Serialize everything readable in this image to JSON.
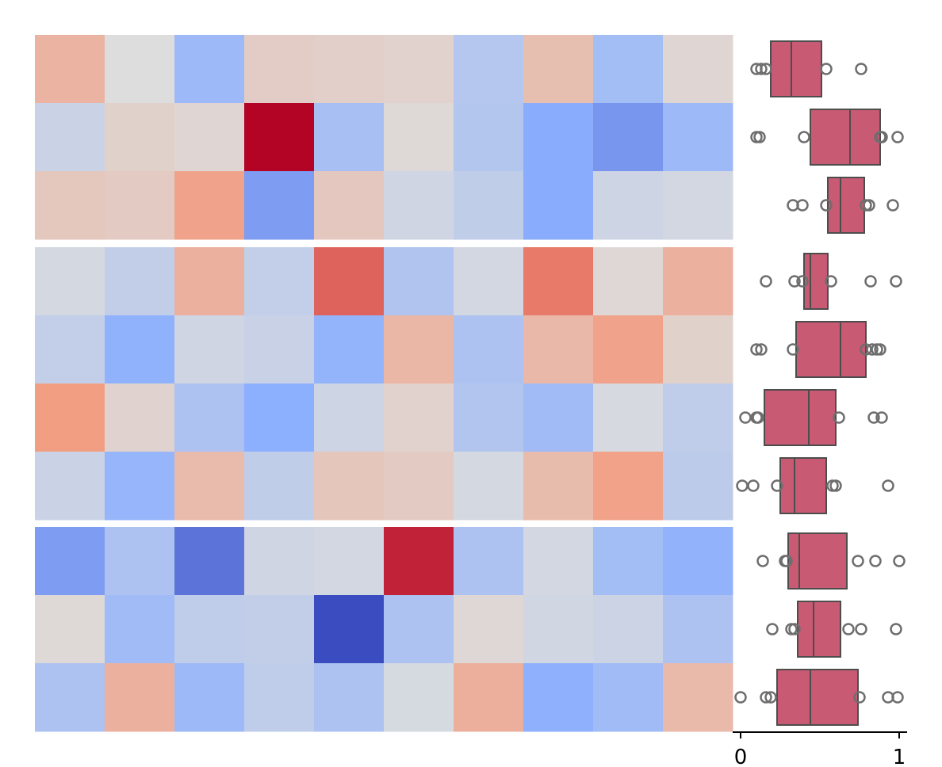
{
  "chart_data": [
    {
      "type": "heatmap",
      "title": "",
      "xlabel": "",
      "ylabel": "",
      "colormap": "coolwarm",
      "value_range": [
        -1,
        1
      ],
      "columns": 10,
      "row_groups": [
        3,
        4,
        3
      ],
      "values": [
        [
          0.3,
          0.0,
          -0.4,
          0.12,
          0.1,
          0.08,
          -0.25,
          0.22,
          -0.36,
          0.05
        ],
        [
          -0.12,
          0.09,
          0.05,
          1.0,
          -0.33,
          0.03,
          -0.26,
          -0.52,
          -0.63,
          -0.4
        ],
        [
          0.16,
          0.13,
          0.42,
          -0.6,
          0.15,
          -0.09,
          -0.18,
          -0.52,
          -0.1,
          -0.07
        ],
        [
          -0.06,
          -0.17,
          0.32,
          -0.16,
          0.68,
          -0.28,
          -0.07,
          0.6,
          0.04,
          0.32
        ],
        [
          -0.16,
          -0.48,
          -0.09,
          -0.13,
          -0.46,
          0.28,
          -0.3,
          0.27,
          0.42,
          0.09
        ],
        [
          0.46,
          0.07,
          -0.3,
          -0.5,
          -0.1,
          0.08,
          -0.27,
          -0.38,
          -0.04,
          -0.19
        ],
        [
          -0.12,
          -0.44,
          0.25,
          -0.18,
          0.17,
          0.13,
          -0.06,
          0.24,
          0.43,
          -0.2
        ],
        [
          -0.6,
          -0.3,
          -0.8,
          -0.09,
          -0.07,
          0.9,
          -0.3,
          -0.07,
          -0.36,
          -0.47
        ],
        [
          0.03,
          -0.38,
          -0.19,
          -0.17,
          -1.0,
          -0.3,
          0.04,
          -0.08,
          -0.11,
          -0.3
        ],
        [
          -0.3,
          0.32,
          -0.4,
          -0.19,
          -0.3,
          -0.05,
          0.33,
          -0.49,
          -0.38,
          0.26
        ]
      ]
    },
    {
      "type": "box",
      "orientation": "horizontal",
      "xlim": [
        -0.05,
        1.05
      ],
      "x_ticks": [
        "0",
        "1"
      ],
      "box_color": "#c85a73",
      "outlier_color": "#6e6e6e",
      "rows": [
        {
          "q1": 0.19,
          "median": 0.32,
          "q3": 0.51,
          "outliers": [
            0.1,
            0.13,
            0.16,
            0.54,
            0.76
          ]
        },
        {
          "q1": 0.44,
          "median": 0.69,
          "q3": 0.88,
          "outliers": [
            0.1,
            0.12,
            0.4,
            0.88,
            0.89,
            0.99
          ]
        },
        {
          "q1": 0.55,
          "median": 0.63,
          "q3": 0.78,
          "outliers": [
            0.33,
            0.39,
            0.54,
            0.79,
            0.81,
            0.96
          ]
        },
        {
          "q1": 0.4,
          "median": 0.44,
          "q3": 0.55,
          "outliers": [
            0.16,
            0.34,
            0.39,
            0.57,
            0.82,
            0.98
          ]
        },
        {
          "q1": 0.35,
          "median": 0.63,
          "q3": 0.79,
          "outliers": [
            0.1,
            0.13,
            0.33,
            0.79,
            0.83,
            0.86,
            0.88
          ]
        },
        {
          "q1": 0.15,
          "median": 0.43,
          "q3": 0.6,
          "outliers": [
            0.03,
            0.1,
            0.11,
            0.62,
            0.84,
            0.89
          ]
        },
        {
          "q1": 0.25,
          "median": 0.34,
          "q3": 0.54,
          "outliers": [
            0.01,
            0.08,
            0.23,
            0.58,
            0.6,
            0.93
          ]
        },
        {
          "q1": 0.3,
          "median": 0.37,
          "q3": 0.67,
          "outliers": [
            0.14,
            0.28,
            0.29,
            0.74,
            0.85,
            1.0
          ]
        },
        {
          "q1": 0.36,
          "median": 0.46,
          "q3": 0.63,
          "outliers": [
            0.2,
            0.32,
            0.34,
            0.68,
            0.76,
            0.98
          ]
        },
        {
          "q1": 0.23,
          "median": 0.44,
          "q3": 0.74,
          "outliers": [
            0.0,
            0.16,
            0.19,
            0.75,
            0.93,
            0.99
          ]
        }
      ]
    }
  ]
}
